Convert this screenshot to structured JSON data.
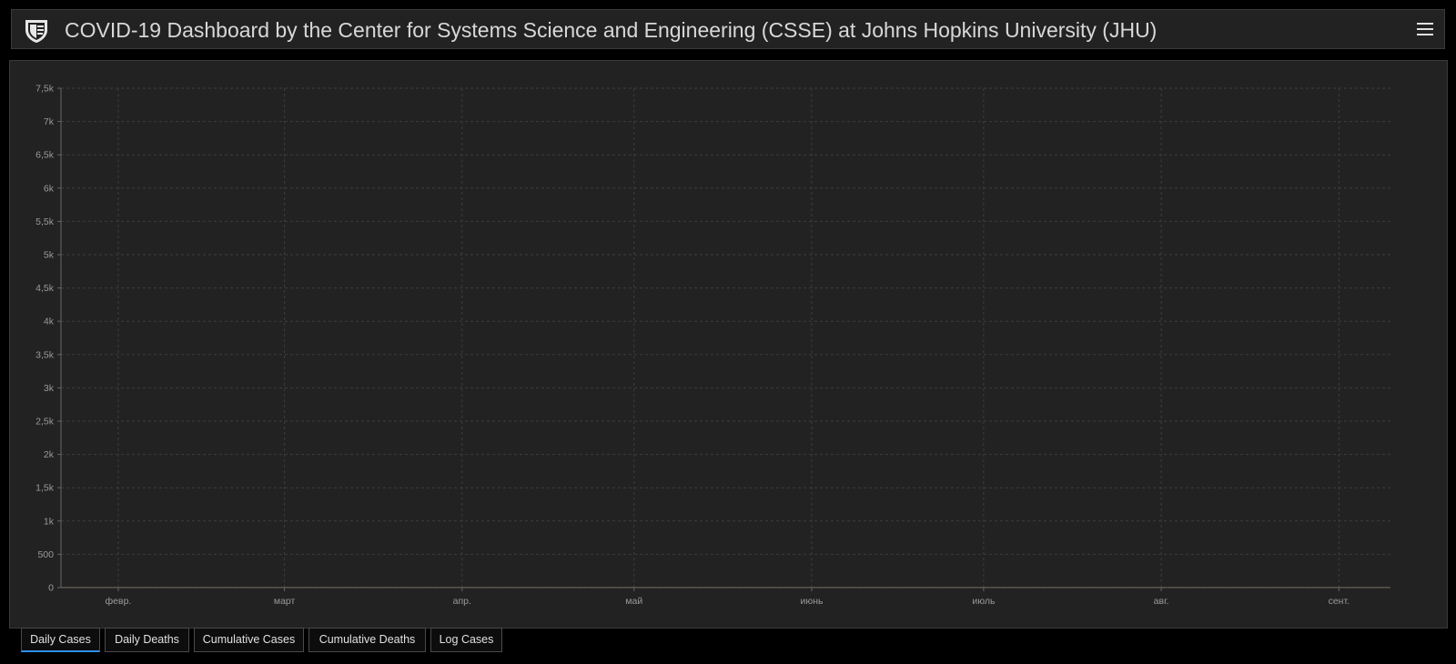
{
  "header": {
    "title": "COVID-19 Dashboard by the Center for Systems Science and Engineering (CSSE) at Johns Hopkins University (JHU)"
  },
  "tabs": [
    {
      "label": "Daily Cases",
      "active": true
    },
    {
      "label": "Daily Deaths",
      "active": false
    },
    {
      "label": "Cumulative Cases",
      "active": false
    },
    {
      "label": "Cumulative Deaths",
      "active": false
    },
    {
      "label": "Log Cases",
      "active": false
    }
  ],
  "colors": {
    "bar": "#ffab00",
    "panel": "#222222",
    "grid": "#3d3d3d",
    "text": "#9a9a9a",
    "active_tab": "#2d8ff0"
  },
  "chart_data": {
    "type": "bar",
    "start_date": "2020-01-22",
    "ylim": [
      0,
      7500
    ],
    "y_ticks": [
      0,
      500,
      1000,
      1500,
      2000,
      2500,
      3000,
      3500,
      4000,
      4500,
      5000,
      5500,
      6000,
      6500,
      7000,
      7500
    ],
    "y_tick_labels": [
      "0",
      "500",
      "1k",
      "1,5k",
      "2k",
      "2,5k",
      "3k",
      "3,5k",
      "4k",
      "4,5k",
      "5k",
      "5,5k",
      "6k",
      "6,5k",
      "7k",
      "7,5k"
    ],
    "x_tick_labels": [
      {
        "label": "февр.",
        "date": "2020-02-01"
      },
      {
        "label": "март",
        "date": "2020-03-01"
      },
      {
        "label": "апр.",
        "date": "2020-04-01"
      },
      {
        "label": "май",
        "date": "2020-05-01"
      },
      {
        "label": "июнь",
        "date": "2020-06-01"
      },
      {
        "label": "июль",
        "date": "2020-07-01"
      },
      {
        "label": "авг.",
        "date": "2020-08-01"
      },
      {
        "label": "сент.",
        "date": "2020-09-01"
      }
    ],
    "values": [
      0,
      0,
      0,
      0,
      0,
      0,
      0,
      0,
      0,
      0,
      0,
      0,
      0,
      0,
      0,
      0,
      0,
      0,
      0,
      0,
      0,
      0,
      0,
      0,
      0,
      0,
      0,
      0,
      0,
      0,
      0,
      0,
      0,
      0,
      0,
      0,
      0,
      0,
      0,
      0,
      0,
      0,
      0,
      0,
      0,
      0,
      0,
      0,
      0,
      0,
      0,
      0,
      0,
      0,
      0,
      0,
      0,
      0,
      0,
      0,
      0,
      0,
      0,
      0,
      0,
      0,
      0,
      0,
      0,
      0,
      0,
      0,
      0,
      0,
      0,
      0,
      0,
      0,
      0,
      0,
      0,
      0,
      0,
      0,
      0,
      0,
      0,
      0,
      0,
      0,
      0,
      0,
      0,
      0,
      0,
      0,
      0,
      0,
      0,
      0,
      0,
      0,
      0,
      0,
      0,
      0,
      0,
      0,
      0,
      0,
      0,
      0,
      0,
      0,
      0,
      0,
      0,
      0,
      0,
      0,
      0,
      0,
      0,
      0,
      0,
      0,
      0,
      0,
      0,
      0,
      0,
      0,
      0,
      0,
      0,
      0,
      0,
      0,
      0,
      0,
      0,
      0,
      0,
      0,
      0,
      0,
      0,
      0,
      0,
      0,
      0,
      0,
      0,
      0,
      0,
      0,
      0,
      0,
      0,
      0,
      0,
      0,
      0,
      0,
      0,
      0,
      0,
      0,
      0,
      0,
      0,
      0,
      0,
      0,
      0,
      0,
      0,
      0,
      0,
      0,
      0,
      0,
      0,
      0,
      0,
      0,
      0,
      0,
      0,
      0,
      0,
      0,
      0,
      0,
      0,
      0,
      0,
      0,
      0,
      0,
      0,
      0,
      0,
      0,
      0,
      0,
      0,
      0,
      0,
      0,
      0,
      0,
      0,
      0,
      0,
      0,
      0,
      0,
      0,
      0,
      0,
      0,
      0,
      0,
      0,
      0,
      0,
      0,
      0,
      0,
      0,
      0
    ]
  }
}
